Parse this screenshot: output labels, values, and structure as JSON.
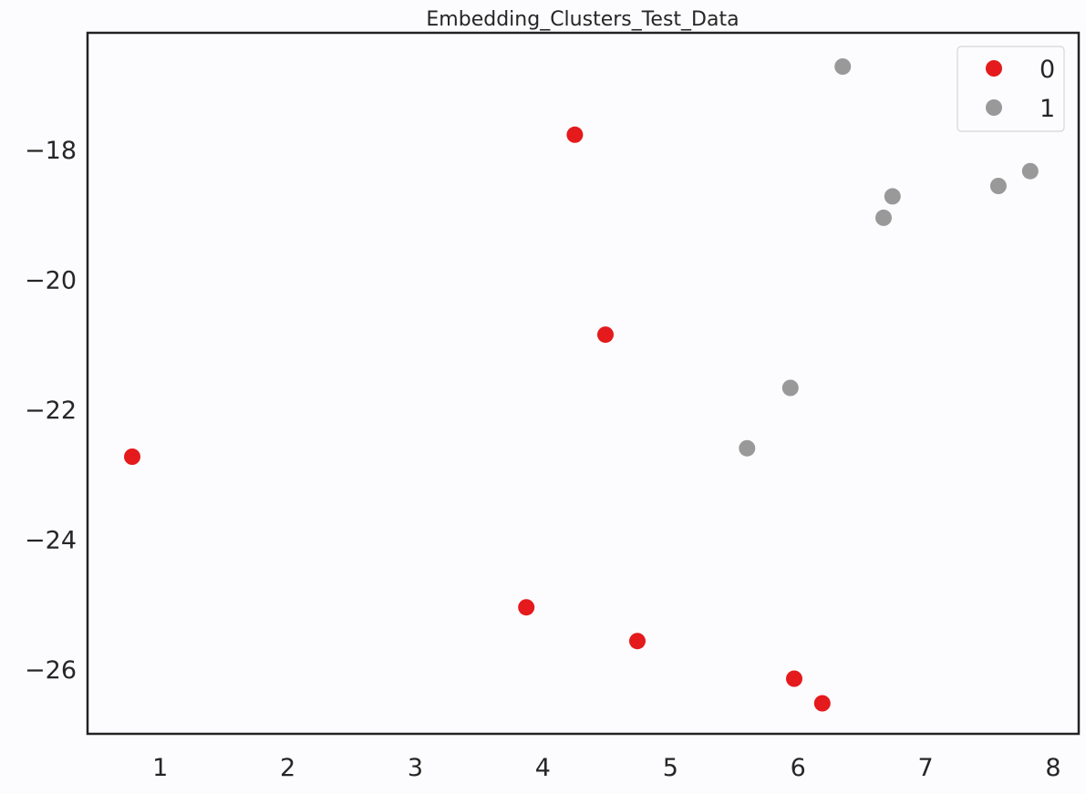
{
  "chart_data": {
    "type": "scatter",
    "title": "Embedding_Clusters_Test_Data",
    "xlabel": "",
    "ylabel": "",
    "xlim": [
      0.43,
      8.2
    ],
    "ylim": [
      -27.0,
      -16.2
    ],
    "xticks": [
      1,
      2,
      3,
      4,
      5,
      6,
      7,
      8
    ],
    "yticks": [
      -26,
      -24,
      -22,
      -20,
      -18
    ],
    "xtick_labels": [
      "1",
      "2",
      "3",
      "4",
      "5",
      "6",
      "7",
      "8"
    ],
    "ytick_labels": [
      "−26",
      "−24",
      "−22",
      "−20",
      "−18"
    ],
    "grid": false,
    "legend_position": "top-right",
    "series": [
      {
        "name": "0",
        "color": "#e41a1c",
        "points": [
          {
            "x": 0.78,
            "y": -22.73
          },
          {
            "x": 4.25,
            "y": -17.77
          },
          {
            "x": 4.49,
            "y": -20.85
          },
          {
            "x": 3.87,
            "y": -25.05
          },
          {
            "x": 4.74,
            "y": -25.57
          },
          {
            "x": 5.97,
            "y": -26.15
          },
          {
            "x": 6.19,
            "y": -26.53
          }
        ]
      },
      {
        "name": "1",
        "color": "#999999",
        "points": [
          {
            "x": 6.35,
            "y": -16.72
          },
          {
            "x": 7.82,
            "y": -18.33
          },
          {
            "x": 7.57,
            "y": -18.56
          },
          {
            "x": 6.74,
            "y": -18.72
          },
          {
            "x": 6.67,
            "y": -19.05
          },
          {
            "x": 5.94,
            "y": -21.67
          },
          {
            "x": 5.6,
            "y": -22.6
          }
        ]
      }
    ]
  }
}
